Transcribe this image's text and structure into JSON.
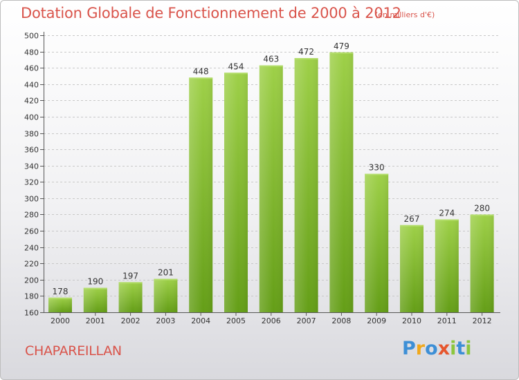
{
  "header": {
    "title": "Dotation Globale de Fonctionnement de 2000 à 2012",
    "unit_note": "(en milliers d'€)"
  },
  "footer": {
    "commune": "CHAPAREILLAN",
    "logo": {
      "text": "Proxiti",
      "letters": [
        {
          "ch": "P",
          "color": "#3d8fd6"
        },
        {
          "ch": "r",
          "color": "#f0a81c"
        },
        {
          "ch": "o",
          "color": "#3d8fd6"
        },
        {
          "ch": "x",
          "color": "#e6562e"
        },
        {
          "ch": "i",
          "color": "#8cc63e"
        },
        {
          "ch": "t",
          "color": "#3d8fd6"
        },
        {
          "ch": "i",
          "color": "#8cc63e"
        }
      ]
    }
  },
  "colors": {
    "title": "#d9534a",
    "bar_top": "#9ed048",
    "bar_bottom": "#649e17",
    "grid": "#c8c8c8"
  },
  "chart_data": {
    "type": "bar",
    "categories": [
      "2000",
      "2001",
      "2002",
      "2003",
      "2004",
      "2005",
      "2006",
      "2007",
      "2008",
      "2009",
      "2010",
      "2011",
      "2012"
    ],
    "values": [
      178,
      190,
      197,
      201,
      448,
      454,
      463,
      472,
      479,
      330,
      267,
      274,
      280
    ],
    "data_labels": [
      "178",
      "190",
      "197",
      "201",
      "448",
      "454",
      "463",
      "472",
      "479",
      "330",
      "267",
      "274",
      "280"
    ],
    "ylim": [
      160,
      500
    ],
    "yticks": [
      160,
      180,
      200,
      220,
      240,
      260,
      280,
      300,
      320,
      340,
      360,
      380,
      400,
      420,
      440,
      460,
      480,
      500
    ],
    "grid": "horizontal dashed"
  }
}
